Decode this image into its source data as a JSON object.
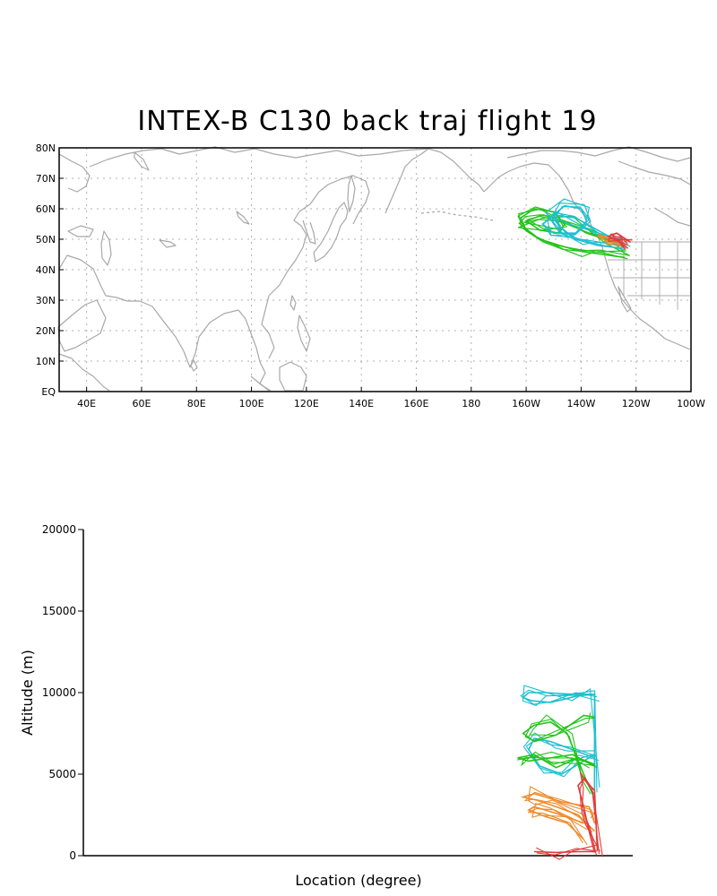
{
  "title": "INTEX-B C130 back traj flight 19",
  "colors": {
    "coast": "#a8a8a8",
    "grid": "#b0b0b0",
    "traj_green": "#22c41a",
    "traj_cyan": "#1fbfcf",
    "traj_orange": "#ee8a2a",
    "traj_red": "#e23a3a"
  },
  "map": {
    "lon_ticks": [
      "40E",
      "60E",
      "80E",
      "100E",
      "120E",
      "140E",
      "160E",
      "180",
      "160W",
      "140W",
      "120W",
      "100W"
    ],
    "lat_ticks": [
      "EQ",
      "10N",
      "20N",
      "30N",
      "40N",
      "50N",
      "60N",
      "70N",
      "80N"
    ],
    "chart_data": {
      "type": "scatter",
      "xlim": [
        30,
        260
      ],
      "ylim": [
        0,
        80
      ],
      "grid": true,
      "series": [
        {
          "color": "green",
          "x": [
            236,
            228,
            220,
            212,
            205,
            200,
            198,
            203,
            210,
            214,
            212,
            205,
            200,
            206,
            214,
            222,
            232,
            236
          ],
          "y": [
            44,
            45,
            46,
            48,
            50,
            53,
            57,
            60,
            59,
            55,
            52,
            53,
            56,
            58,
            56,
            52,
            49,
            47
          ]
        },
        {
          "color": "cyan",
          "x": [
            235,
            226,
            218,
            212,
            210,
            214,
            220,
            222,
            218,
            210,
            206,
            210,
            218,
            228,
            236
          ],
          "y": [
            47,
            48,
            50,
            54,
            58,
            61,
            60,
            56,
            52,
            52,
            55,
            58,
            57,
            52,
            48
          ]
        },
        {
          "color": "orange",
          "x": [
            236,
            230,
            226,
            232,
            236
          ],
          "y": [
            48,
            49,
            51,
            50,
            48
          ]
        },
        {
          "color": "red",
          "x": [
            237,
            234,
            230,
            233,
            238
          ],
          "y": [
            47,
            49,
            51,
            52,
            49
          ]
        }
      ]
    }
  },
  "profile": {
    "ylabel": "Altitude (m)",
    "xlabel": "Location (degree)",
    "y_ticks": [
      "0",
      "5000",
      "10000",
      "15000",
      "20000"
    ],
    "chart_data": {
      "type": "line",
      "ylim": [
        0,
        20000
      ],
      "series": [
        {
          "color": "cyan",
          "x": [
            236,
            236,
            228,
            218,
            212,
            210,
            213,
            220,
            230,
            236
          ],
          "y": [
            4000,
            9900,
            9900,
            10000,
            10000,
            9700,
            9500,
            9400,
            9800,
            9900
          ]
        },
        {
          "color": "cyan",
          "x": [
            236,
            228,
            220,
            214,
            212,
            216,
            224,
            232,
            236
          ],
          "y": [
            6000,
            6500,
            7000,
            7200,
            6500,
            5500,
            5000,
            5800,
            6200
          ]
        },
        {
          "color": "green",
          "x": [
            236,
            232,
            226,
            220,
            214,
            210,
            214,
            222,
            232,
            236
          ],
          "y": [
            3500,
            5000,
            7500,
            8200,
            8000,
            7500,
            7000,
            7400,
            8600,
            8500
          ]
        },
        {
          "color": "green",
          "x": [
            236,
            228,
            220,
            212,
            208,
            214,
            222,
            230,
            236
          ],
          "y": [
            5500,
            6200,
            6000,
            5800,
            6000,
            6200,
            5400,
            6000,
            5600
          ]
        },
        {
          "color": "orange",
          "x": [
            236,
            230,
            222,
            215,
            210,
            214,
            224,
            234,
            236
          ],
          "y": [
            1500,
            2500,
            3000,
            3400,
            3600,
            3800,
            3300,
            3000,
            2000
          ]
        },
        {
          "color": "orange",
          "x": [
            232,
            226,
            218,
            212,
            214,
            222,
            232
          ],
          "y": [
            1000,
            2000,
            2400,
            2800,
            3000,
            2600,
            2000
          ]
        },
        {
          "color": "red",
          "x": [
            236,
            234,
            232,
            230,
            232,
            236,
            237
          ],
          "y": [
            200,
            1500,
            3000,
            4300,
            4700,
            4000,
            300
          ]
        },
        {
          "color": "red",
          "x": [
            236,
            230,
            222,
            214
          ],
          "y": [
            250,
            250,
            200,
            250
          ]
        }
      ]
    }
  }
}
